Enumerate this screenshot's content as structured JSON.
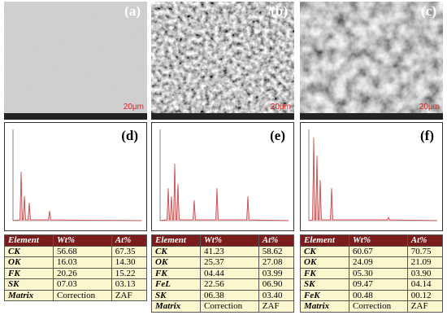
{
  "panels": [
    {
      "label": "(a)",
      "scale": "20μm"
    },
    {
      "label": "(b)",
      "scale": "20μm"
    },
    {
      "label": "(c)",
      "scale": "20μm"
    }
  ],
  "spectra": [
    {
      "label": "(d)"
    },
    {
      "label": "(e)"
    },
    {
      "label": "(f)"
    }
  ],
  "tables": [
    {
      "header": [
        "Element",
        "Wt%",
        "At%"
      ],
      "rows": [
        [
          "CK",
          "56.68",
          "67.35"
        ],
        [
          "OK",
          "16.03",
          "14.30"
        ],
        [
          "FK",
          "20.26",
          "15.22"
        ],
        [
          "SK",
          "07.03",
          "03.13"
        ],
        [
          "Matrix",
          "Correction",
          "ZAF"
        ]
      ]
    },
    {
      "header": [
        "Element",
        "Wt%",
        "At%"
      ],
      "rows": [
        [
          "CK",
          "41.23",
          "58.62"
        ],
        [
          "OK",
          "25.37",
          "27.08"
        ],
        [
          "FK",
          "04.44",
          "03.99"
        ],
        [
          "FeL",
          "22.56",
          "06.90"
        ],
        [
          "SK",
          "06.38",
          "03.40"
        ],
        [
          "Matrix",
          "Correction",
          "ZAF"
        ]
      ]
    },
    {
      "header": [
        "Element",
        "Wt%",
        "At%"
      ],
      "rows": [
        [
          "CK",
          "60.67",
          "70.75"
        ],
        [
          "OK",
          "24.09",
          "21.09"
        ],
        [
          "FK",
          "05.30",
          "03.90"
        ],
        [
          "SK",
          "09.47",
          "04.14"
        ],
        [
          "FeK",
          "00.48",
          "00.12"
        ],
        [
          "Matrix",
          "Correction",
          "ZAF"
        ]
      ]
    }
  ]
}
